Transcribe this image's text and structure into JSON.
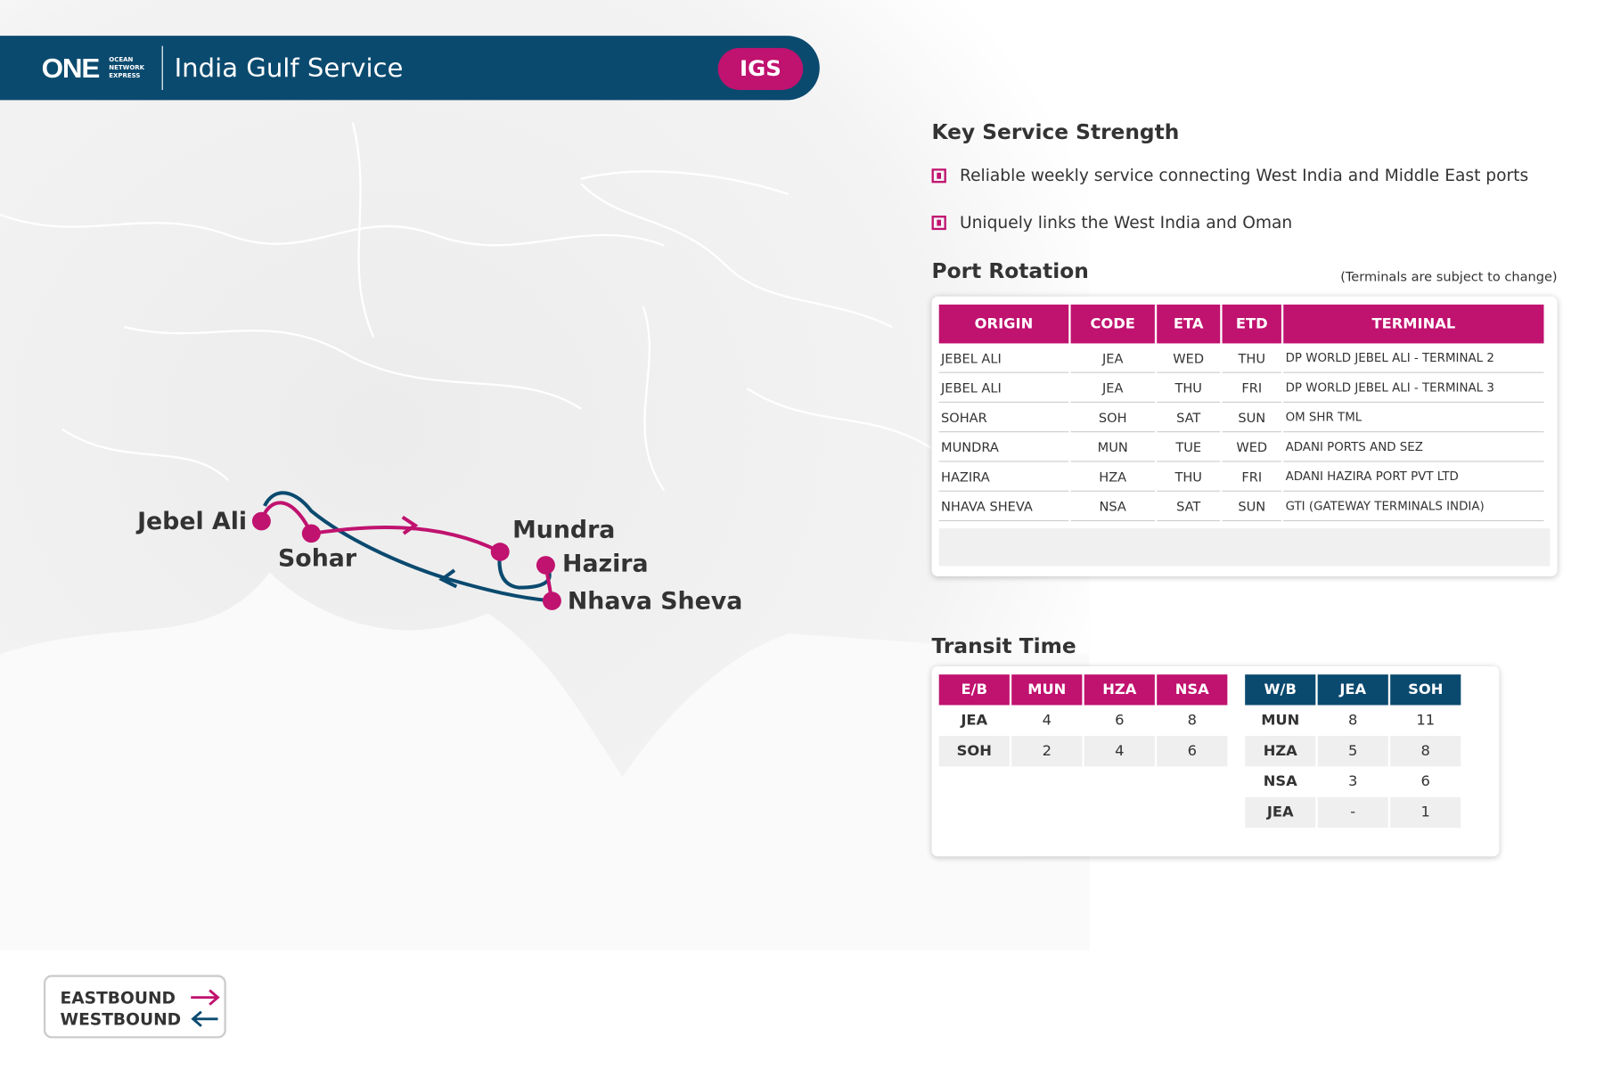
{
  "header": {
    "logo": "ONE",
    "logo_sub": [
      "OCEAN",
      "NETWORK",
      "EXPRESS"
    ],
    "title": "India Gulf Service",
    "badge": "IGS"
  },
  "map": {
    "ports": [
      "Jebel Ali",
      "Sohar",
      "Mundra",
      "Hazira",
      "Nhava Sheva"
    ]
  },
  "legend": [
    "EASTBOUND",
    "WESTBOUND"
  ],
  "key_strength": {
    "title": "Key Service Strength",
    "items": [
      "Reliable weekly service connecting West India and Middle East ports",
      "Uniquely links the West India and Oman"
    ]
  },
  "port_rotation": {
    "title": "Port Rotation",
    "note": "(Terminals are subject to change)",
    "columns": [
      "ORIGIN",
      "CODE",
      "ETA",
      "ETD",
      "TERMINAL"
    ],
    "rows": [
      [
        "JEBEL ALI",
        "JEA",
        "WED",
        "THU",
        "DP WORLD JEBEL ALI - TERMINAL 2"
      ],
      [
        "JEBEL ALI",
        "JEA",
        "THU",
        "FRI",
        "DP WORLD JEBEL ALI - TERMINAL 3"
      ],
      [
        "SOHAR",
        "SOH",
        "SAT",
        "SUN",
        "OM SHR TML"
      ],
      [
        "MUNDRA",
        "MUN",
        "TUE",
        "WED",
        "ADANI PORTS AND SEZ"
      ],
      [
        "HAZIRA",
        "HZA",
        "THU",
        "FRI",
        "ADANI HAZIRA PORT PVT LTD"
      ],
      [
        "NHAVA SHEVA",
        "NSA",
        "SAT",
        "SUN",
        "GTI (GATEWAY TERMINALS INDIA)"
      ]
    ]
  },
  "transit": {
    "title": "Transit Time",
    "eastbound": {
      "columns": [
        "E/B",
        "MUN",
        "HZA",
        "NSA"
      ],
      "rows": [
        [
          "JEA",
          4,
          6,
          8
        ],
        [
          "SOH",
          2,
          4,
          6
        ]
      ]
    },
    "westbound": {
      "columns": [
        "W/B",
        "JEA",
        "SOH"
      ],
      "rows": [
        [
          "MUN",
          8,
          11
        ],
        [
          "HZA",
          5,
          8
        ],
        [
          "NSA",
          3,
          6
        ],
        [
          "JEA",
          "-",
          1
        ]
      ]
    }
  }
}
